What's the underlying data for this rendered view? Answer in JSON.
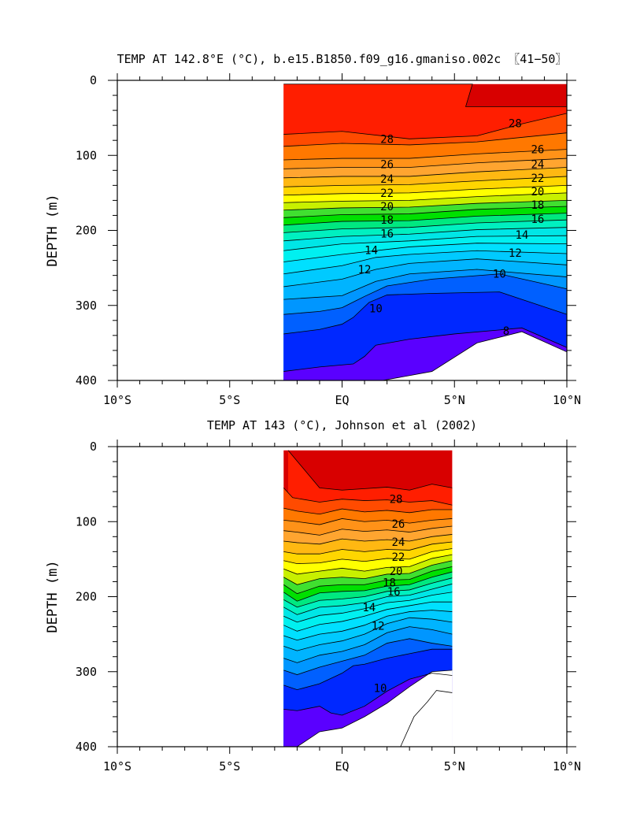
{
  "page": {
    "background": "#ffffff"
  },
  "colors": {
    "c29": "#d80000",
    "c28": "#ff1e00",
    "c27": "#ff4b00",
    "c26": "#ff7800",
    "c25": "#ff9218",
    "c24": "#ffa530",
    "c23": "#ffb812",
    "c22": "#ffd600",
    "c21": "#ffff00",
    "c20": "#c8f000",
    "c19": "#40e030",
    "c18": "#00e000",
    "c17": "#00e880",
    "c16": "#00f0c0",
    "c15": "#00e6e6",
    "c14": "#00f0f0",
    "c13": "#00e0ff",
    "c12": "#00caff",
    "c11": "#00b4ff",
    "c10": "#0096ff",
    "c9": "#0060ff",
    "c8": "#0028ff",
    "c7": "#5a00ff"
  },
  "chart_data": [
    {
      "type": "heatmap",
      "title": "TEMP AT 142.8°E (°C), b.e15.B1850.f09_g16.gmaniso.002c 〖41−50〗",
      "ylabel": "DEPTH (m)",
      "xlabel": "",
      "xlim": [
        -10,
        10
      ],
      "ylim": [
        0,
        400
      ],
      "x_tick_values": [
        -10,
        -5,
        0,
        5,
        10
      ],
      "x_tick_labels": [
        "10°S",
        "5°S",
        "EQ",
        "5°N",
        "10°N"
      ],
      "y_tick_values": [
        0,
        100,
        200,
        300,
        400
      ],
      "y_tick_labels": [
        "0",
        "100",
        "200",
        "300",
        "400"
      ],
      "data_xrange": [
        -2.6,
        10
      ],
      "data_top_depth": 5,
      "contour_interval": 1,
      "contour_labels": [
        {
          "text": "28",
          "x": 7.7,
          "y": 57
        },
        {
          "text": "28",
          "x": 2.0,
          "y": 78
        },
        {
          "text": "26",
          "x": 2.0,
          "y": 112
        },
        {
          "text": "26",
          "x": 8.7,
          "y": 92
        },
        {
          "text": "24",
          "x": 2.0,
          "y": 131
        },
        {
          "text": "24",
          "x": 8.7,
          "y": 112
        },
        {
          "text": "22",
          "x": 2.0,
          "y": 150
        },
        {
          "text": "22",
          "x": 8.7,
          "y": 130
        },
        {
          "text": "20",
          "x": 2.0,
          "y": 168
        },
        {
          "text": "20",
          "x": 8.7,
          "y": 148
        },
        {
          "text": "18",
          "x": 2.0,
          "y": 186
        },
        {
          "text": "18",
          "x": 8.7,
          "y": 166
        },
        {
          "text": "16",
          "x": 2.0,
          "y": 204
        },
        {
          "text": "16",
          "x": 8.7,
          "y": 185
        },
        {
          "text": "14",
          "x": 1.3,
          "y": 226
        },
        {
          "text": "14",
          "x": 8.0,
          "y": 206
        },
        {
          "text": "12",
          "x": 1.0,
          "y": 252
        },
        {
          "text": "12",
          "x": 7.7,
          "y": 230
        },
        {
          "text": "10",
          "x": 1.5,
          "y": 304
        },
        {
          "text": "10",
          "x": 7.0,
          "y": 258
        },
        {
          "text": "8",
          "x": 7.3,
          "y": 334
        }
      ]
    },
    {
      "type": "heatmap",
      "title": "TEMP AT 143 (°C), Johnson et al (2002)",
      "ylabel": "DEPTH (m)",
      "xlabel": "",
      "xlim": [
        -10,
        10
      ],
      "ylim": [
        0,
        400
      ],
      "x_tick_values": [
        -10,
        -5,
        0,
        5,
        10
      ],
      "x_tick_labels": [
        "10°S",
        "5°S",
        "EQ",
        "5°N",
        "10°N"
      ],
      "y_tick_values": [
        0,
        100,
        200,
        300,
        400
      ],
      "y_tick_labels": [
        "0",
        "100",
        "200",
        "300",
        "400"
      ],
      "data_xrange": [
        -2.6,
        4.9
      ],
      "data_top_depth": 5,
      "contour_interval": 1,
      "contour_labels": [
        {
          "text": "28",
          "x": 2.4,
          "y": 70
        },
        {
          "text": "26",
          "x": 2.5,
          "y": 103
        },
        {
          "text": "24",
          "x": 2.5,
          "y": 127
        },
        {
          "text": "22",
          "x": 2.5,
          "y": 147
        },
        {
          "text": "20",
          "x": 2.4,
          "y": 166
        },
        {
          "text": "18",
          "x": 2.1,
          "y": 181
        },
        {
          "text": "16",
          "x": 2.3,
          "y": 193
        },
        {
          "text": "14",
          "x": 1.2,
          "y": 214
        },
        {
          "text": "12",
          "x": 1.6,
          "y": 239
        },
        {
          "text": "10",
          "x": 1.7,
          "y": 322
        }
      ]
    }
  ]
}
